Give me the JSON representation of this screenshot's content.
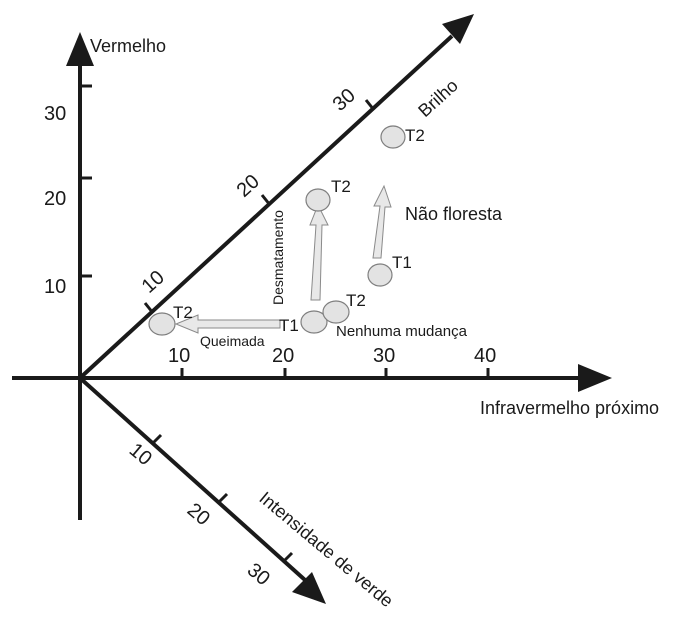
{
  "axes": {
    "vermelho": "Vermelho",
    "infravermelho": "Infravermelho próximo",
    "brilho": "Brilho",
    "verde": "Intensidade de verde"
  },
  "ticks": {
    "vermelho": [
      "10",
      "20",
      "30"
    ],
    "infravermelho": [
      "10",
      "20",
      "30",
      "40"
    ],
    "brilho": [
      "10",
      "20",
      "30"
    ],
    "verde": [
      "10",
      "20",
      "30"
    ]
  },
  "points": {
    "queimada_t2": "T2",
    "shared_t1": "T1",
    "nenhuma_t2": "T2",
    "desmatamento_t2": "T2",
    "naofloresta_t1": "T1",
    "naofloresta_t2": "T2"
  },
  "annotations": {
    "queimada": "Queimada",
    "desmatamento": "Desmatamento",
    "nao_floresta": "Não floresta",
    "nenhuma_mudanca": "Nenhuma mudança"
  }
}
